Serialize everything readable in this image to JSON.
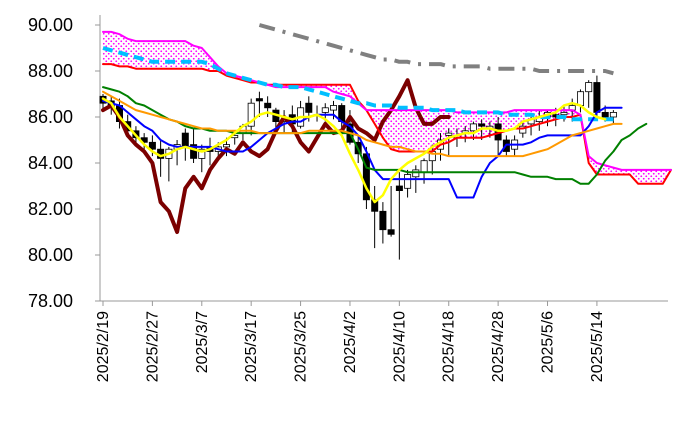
{
  "chart_data": {
    "type": "line",
    "title": "",
    "xlabel": "",
    "ylabel": "",
    "ylim": [
      78.0,
      90.0
    ],
    "yticks": [
      "78.00",
      "80.00",
      "82.00",
      "84.00",
      "86.00",
      "88.00",
      "90.00"
    ],
    "xticks": [
      "2025/2/19",
      "2025/2/27",
      "2025/3/7",
      "2025/3/17",
      "2025/3/25",
      "2025/4/2",
      "2025/4/10",
      "2025/4/18",
      "2025/4/28",
      "2025/5/6",
      "2025/5/14"
    ],
    "xtick_index": [
      0,
      6,
      12,
      18,
      24,
      30,
      36,
      42,
      48,
      54,
      60
    ],
    "n_points": 70,
    "grid": false,
    "legend": "none",
    "candlesticks": {
      "open": [
        86.9,
        86.7,
        86.5,
        85.8,
        85.4,
        85.1,
        84.9,
        84.6,
        84.2,
        84.6,
        85.3,
        84.8,
        84.2,
        84.7,
        84.5,
        84.7,
        85.1,
        85.3,
        85.6,
        86.8,
        86.6,
        86.3,
        85.8,
        86.1,
        85.6,
        86.6,
        86.1,
        86.2,
        86.3,
        86.5,
        85.7,
        84.9,
        84.4,
        82.4,
        81.9,
        81.1,
        83.0,
        82.9,
        83.4,
        83.6,
        84.1,
        84.6,
        85.2,
        85.1,
        85.3,
        85.4,
        85.7,
        85.5,
        85.7,
        85.0,
        84.6,
        85.3,
        85.7,
        85.8,
        86.0,
        86.1,
        86.1,
        86.3,
        86.5,
        87.1,
        87.5,
        86.2,
        86.0
      ],
      "high": [
        87.0,
        86.9,
        86.8,
        86.1,
        85.6,
        85.3,
        85.2,
        85.0,
        84.7,
        85.0,
        85.5,
        85.5,
        84.8,
        85.1,
        84.9,
        85.1,
        85.3,
        85.7,
        86.8,
        87.1,
        86.9,
        86.4,
        86.3,
        86.5,
        86.7,
        86.9,
        86.5,
        86.6,
        86.7,
        86.6,
        86.3,
        85.2,
        84.7,
        83.0,
        82.3,
        83.0,
        83.6,
        83.7,
        83.9,
        84.2,
        84.8,
        85.3,
        85.5,
        85.5,
        85.6,
        85.8,
        85.9,
        85.8,
        86.0,
        85.2,
        85.2,
        85.8,
        86.0,
        86.3,
        86.3,
        86.4,
        86.5,
        86.8,
        87.2,
        87.6,
        87.8,
        86.5,
        86.3
      ],
      "low": [
        86.3,
        86.1,
        85.5,
        85.2,
        84.8,
        84.5,
        84.3,
        83.4,
        83.2,
        83.9,
        84.1,
        84.0,
        83.6,
        83.9,
        84.2,
        84.3,
        84.8,
        85.0,
        85.2,
        86.0,
        86.0,
        85.4,
        85.3,
        85.3,
        85.5,
        85.8,
        85.8,
        85.8,
        85.9,
        85.4,
        84.8,
        84.0,
        82.0,
        80.3,
        80.5,
        80.8,
        79.8,
        82.5,
        82.7,
        83.1,
        83.5,
        84.1,
        84.3,
        84.7,
        84.9,
        85.0,
        85.0,
        85.1,
        84.3,
        84.3,
        84.3,
        85.1,
        85.2,
        85.4,
        85.6,
        85.6,
        85.8,
        85.8,
        86.2,
        86.4,
        86.0,
        85.8,
        85.7
      ],
      "close": [
        86.6,
        86.4,
        85.8,
        85.4,
        85.1,
        84.9,
        84.6,
        84.2,
        84.6,
        84.8,
        84.7,
        84.2,
        84.6,
        84.5,
        84.7,
        84.8,
        85.2,
        85.6,
        86.6,
        86.7,
        86.4,
        85.8,
        85.9,
        85.7,
        86.4,
        86.2,
        86.1,
        86.4,
        86.5,
        85.8,
        84.9,
        84.4,
        82.4,
        81.9,
        81.1,
        80.9,
        82.8,
        83.5,
        83.7,
        84.1,
        84.5,
        85.0,
        85.3,
        85.2,
        85.4,
        85.7,
        85.6,
        85.6,
        85.0,
        84.5,
        85.0,
        85.6,
        85.9,
        86.0,
        86.2,
        86.0,
        86.2,
        86.5,
        87.1,
        87.5,
        86.2,
        86.0,
        86.2
      ]
    },
    "series": [
      {
        "color": "#7b0000",
        "style": "solid",
        "width": 4,
        "values": [
          86.3,
          86.5,
          86.0,
          85.2,
          84.8,
          84.5,
          84.0,
          82.3,
          81.9,
          81.0,
          82.9,
          83.4,
          82.9,
          83.7,
          84.2,
          84.6,
          84.4,
          84.9,
          84.5,
          84.3,
          84.6,
          85.4,
          86.0,
          85.6,
          84.9,
          84.5,
          85.1,
          85.7,
          85.3,
          85.4,
          86.0,
          85.5,
          85.3,
          85.0,
          85.8,
          86.3,
          86.9,
          87.6,
          86.4,
          85.7,
          85.7,
          86.0,
          86.0
        ]
      },
      {
        "color": "#ff0000",
        "style": "solid",
        "width": 2,
        "values": [
          88.3,
          88.3,
          88.2,
          88.2,
          88.1,
          88.1,
          88.1,
          88.1,
          88.1,
          88.1,
          88.1,
          88.1,
          88.1,
          88.0,
          88.0,
          87.8,
          87.7,
          87.6,
          87.5,
          87.5,
          87.4,
          87.4,
          87.4,
          87.4,
          87.4,
          87.4,
          87.4,
          87.4,
          87.4,
          87.4,
          87.4,
          86.7,
          86.3,
          85.7,
          85.1,
          84.6,
          84.5,
          84.5,
          84.5,
          84.5,
          84.5,
          84.8,
          84.9,
          85.1,
          85.1,
          85.1,
          85.1,
          85.2,
          85.3,
          85.4,
          85.5,
          85.5,
          85.6,
          85.7,
          85.8,
          85.9,
          86.0,
          86.0,
          86.1,
          84.0,
          83.5,
          83.5,
          83.5,
          83.5,
          83.5,
          83.1,
          83.1,
          83.1,
          83.1,
          83.7
        ]
      },
      {
        "color": "#ff00ff",
        "style": "solid",
        "width": 2,
        "values": [
          89.7,
          89.7,
          89.6,
          89.4,
          89.3,
          89.3,
          89.3,
          89.3,
          89.3,
          89.3,
          89.3,
          89.1,
          89.0,
          88.6,
          88.2,
          87.9,
          87.8,
          87.7,
          87.6,
          87.5,
          87.4,
          87.3,
          87.3,
          87.3,
          87.3,
          87.3,
          87.3,
          87.3,
          87.1,
          87.0,
          86.9,
          86.6,
          86.3,
          86.3,
          86.3,
          86.3,
          86.3,
          86.3,
          86.3,
          86.3,
          86.3,
          86.3,
          86.3,
          86.2,
          86.2,
          86.2,
          86.2,
          86.2,
          86.2,
          86.2,
          86.3,
          86.3,
          86.3,
          86.3,
          86.3,
          86.3,
          86.3,
          86.3,
          86.1,
          84.3,
          84.0,
          83.9,
          83.8,
          83.7,
          83.7,
          83.7,
          83.7,
          83.7,
          83.7,
          83.7
        ]
      },
      {
        "color": "#00bfff",
        "style": "dashed",
        "width": 4,
        "values": [
          89.0,
          88.9,
          88.8,
          88.7,
          88.6,
          88.5,
          88.4,
          88.4,
          88.4,
          88.4,
          88.4,
          88.4,
          88.4,
          88.3,
          88.1,
          87.9,
          87.8,
          87.7,
          87.6,
          87.5,
          87.4,
          87.4,
          87.3,
          87.3,
          87.3,
          87.2,
          87.1,
          87.0,
          86.9,
          86.8,
          86.7,
          86.6,
          86.6,
          86.5,
          86.5,
          86.5,
          86.4,
          86.4,
          86.4,
          86.4,
          86.3,
          86.3,
          86.3,
          86.3,
          86.2,
          86.2,
          86.2,
          86.2,
          86.2,
          86.1,
          86.1,
          86.1,
          86.1,
          86.0,
          86.0,
          86.0,
          86.0,
          85.9,
          85.9,
          85.9,
          85.9,
          85.9,
          85.9
        ]
      },
      {
        "color": "#808080",
        "style": "dashdot",
        "width": 4,
        "values": [
          null,
          null,
          null,
          null,
          null,
          null,
          null,
          null,
          null,
          null,
          null,
          null,
          null,
          null,
          null,
          null,
          null,
          null,
          null,
          90.0,
          89.9,
          89.8,
          89.7,
          89.6,
          89.5,
          89.4,
          89.3,
          89.2,
          89.1,
          89.0,
          88.9,
          88.8,
          88.7,
          88.6,
          88.5,
          88.5,
          88.4,
          88.4,
          88.3,
          88.3,
          88.3,
          88.3,
          88.2,
          88.2,
          88.2,
          88.2,
          88.2,
          88.1,
          88.1,
          88.1,
          88.1,
          88.1,
          88.1,
          88.0,
          88.0,
          88.0,
          88.0,
          88.0,
          88.0,
          88.0,
          88.0,
          88.0,
          87.9
        ]
      },
      {
        "color": "#0000ff",
        "style": "solid",
        "width": 2,
        "values": [
          86.7,
          86.6,
          86.5,
          86.2,
          85.9,
          85.6,
          85.4,
          85.0,
          84.8,
          84.7,
          84.7,
          84.7,
          84.7,
          84.7,
          84.6,
          84.5,
          84.5,
          84.5,
          84.7,
          85.0,
          85.3,
          85.5,
          85.7,
          85.8,
          85.8,
          86.0,
          86.1,
          86.1,
          86.1,
          85.8,
          85.6,
          85.2,
          84.5,
          83.7,
          83.3,
          83.3,
          83.3,
          83.3,
          83.3,
          83.3,
          83.3,
          83.3,
          83.3,
          82.5,
          82.5,
          82.5,
          83.4,
          84.0,
          84.3,
          84.8,
          84.8,
          84.8,
          84.9,
          85.1,
          85.2,
          85.2,
          85.2,
          85.2,
          85.2,
          85.6,
          86.2,
          86.4,
          86.4,
          86.4
        ]
      },
      {
        "color": "#008000",
        "style": "solid",
        "width": 2,
        "values": [
          87.3,
          87.2,
          87.1,
          86.9,
          86.6,
          86.5,
          86.3,
          86.1,
          85.9,
          85.8,
          85.6,
          85.5,
          85.5,
          85.4,
          85.4,
          85.4,
          85.3,
          85.3,
          85.3,
          85.3,
          85.3,
          85.3,
          85.3,
          85.3,
          85.3,
          85.3,
          85.3,
          85.3,
          85.3,
          85.3,
          85.3,
          84.6,
          83.8,
          83.7,
          83.7,
          83.7,
          83.7,
          83.6,
          83.6,
          83.6,
          83.6,
          83.6,
          83.6,
          83.6,
          83.6,
          83.6,
          83.6,
          83.6,
          83.6,
          83.6,
          83.6,
          83.5,
          83.4,
          83.4,
          83.4,
          83.3,
          83.3,
          83.3,
          83.1,
          83.1,
          83.5,
          84.1,
          84.5,
          85.0,
          85.2,
          85.5,
          85.7
        ]
      },
      {
        "color": "#ff9900",
        "style": "solid",
        "width": 2,
        "values": [
          87.1,
          86.9,
          86.7,
          86.5,
          86.3,
          86.2,
          86.1,
          86.0,
          85.9,
          85.8,
          85.7,
          85.6,
          85.5,
          85.5,
          85.4,
          85.4,
          85.4,
          85.4,
          85.4,
          85.3,
          85.3,
          85.3,
          85.3,
          85.3,
          85.3,
          85.4,
          85.4,
          85.4,
          85.4,
          85.4,
          85.3,
          85.2,
          85.0,
          84.9,
          84.8,
          84.7,
          84.7,
          84.6,
          84.5,
          84.5,
          84.4,
          84.4,
          84.3,
          84.3,
          84.3,
          84.3,
          84.3,
          84.3,
          84.3,
          84.3,
          84.3,
          84.3,
          84.4,
          84.5,
          84.6,
          84.8,
          85.0,
          85.2,
          85.3,
          85.4,
          85.5,
          85.6,
          85.7,
          85.7
        ]
      },
      {
        "color": "#ffff00",
        "style": "solid",
        "width": 2.5,
        "values": [
          86.8,
          86.6,
          86.0,
          85.6,
          85.2,
          84.8,
          84.5,
          84.3,
          84.4,
          84.6,
          84.7,
          84.6,
          84.5,
          84.6,
          84.8,
          85.0,
          85.3,
          85.6,
          85.8,
          86.1,
          86.2,
          86.1,
          86.0,
          85.9,
          86.0,
          86.0,
          86.1,
          85.9,
          85.6,
          85.2,
          84.4,
          83.7,
          82.9,
          82.3,
          82.6,
          83.3,
          83.7,
          84.0,
          84.2,
          84.4,
          84.7,
          84.9,
          85.1,
          85.2,
          85.3,
          85.3,
          85.5,
          85.5,
          85.4,
          85.4,
          85.5,
          85.8,
          85.9,
          86.0,
          86.1,
          86.2,
          86.5,
          86.6,
          86.5,
          86.2,
          86.0,
          85.9
        ]
      }
    ],
    "cloud": {
      "color": "#ff00ff",
      "pattern": "dotted",
      "upper_series_index": 2,
      "lower_series_index": 1
    }
  }
}
